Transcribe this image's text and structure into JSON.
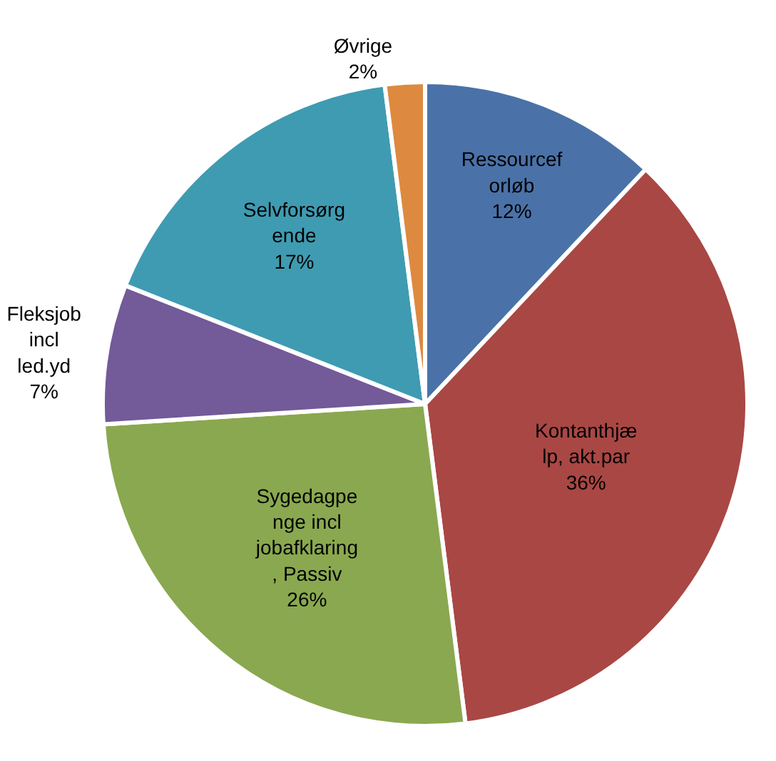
{
  "chart_data": {
    "type": "pie",
    "categories": [
      "Ressourcef\norløb",
      "Kontanthjæ\nlp, akt.par",
      "Sygedagpe\nnge incl\njobafklaring\n, Passiv",
      "Fleksjob\nincl\nled.yd",
      "Selvforsørg\nende",
      "Øvrige"
    ],
    "values": [
      12,
      36,
      26,
      7,
      17,
      2
    ],
    "value_labels": [
      "12%",
      "36%",
      "26%",
      "7%",
      "17%",
      "2%"
    ],
    "colors": [
      "#4a72a8",
      "#a94744",
      "#8aa84f",
      "#735a98",
      "#3f9bb1",
      "#dd8a40"
    ],
    "legend": false
  }
}
